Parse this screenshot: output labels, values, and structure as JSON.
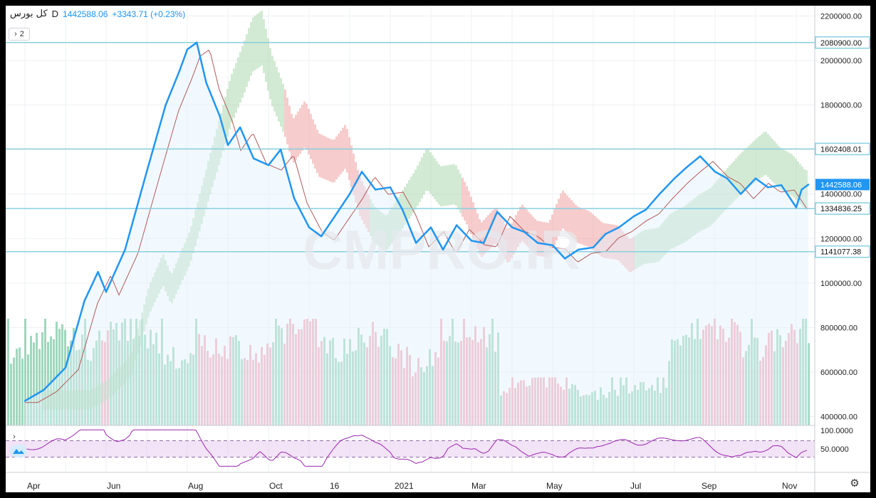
{
  "legend": {
    "symbol": "کل بورس",
    "timeframe": "D",
    "price": "1442588.06",
    "change": "+3343.71 (+0.23%)"
  },
  "ui": {
    "collapse_count": "2",
    "collapse_icon": "chevron-right-icon",
    "settings_icon": "gear-icon"
  },
  "watermark": "CMPRO.IR",
  "colors": {
    "price_line": "#2196f3",
    "hline": "#89cfe0",
    "kijun": "#b05a5a",
    "cloud_bull": "#a5d6a7",
    "cloud_bear": "#ef9a9a",
    "vol_up": "#8fd0b0",
    "vol_down": "#f0a3b0",
    "rsi_line": "#9c27b0",
    "rsi_band": "#ead1f0"
  },
  "chart_data": {
    "type": "line",
    "title": "کل بورس",
    "timeframe": "D",
    "x_tick_labels": [
      "Apr",
      "Jun",
      "Aug",
      "Oct",
      "16",
      "2021",
      "Mar",
      "May",
      "Jul",
      "Sep",
      "Nov"
    ],
    "y_tick_labels": [
      "400000.00",
      "600000.00",
      "800000.00",
      "1000000.00",
      "1200000.00",
      "1400000.00",
      "1600000.00",
      "1800000.00",
      "2000000.00",
      "2200000.00"
    ],
    "ylim": [
      360000,
      2240000
    ],
    "grid": true,
    "price_series": {
      "name": "کل بورس",
      "points": [
        [
          "Apr-01",
          470000
        ],
        [
          "Apr-15",
          520000
        ],
        [
          "May-01",
          620000
        ],
        [
          "May-15",
          920000
        ],
        [
          "May-25",
          1050000
        ],
        [
          "Jun-01",
          960000
        ],
        [
          "Jun-15",
          1150000
        ],
        [
          "Jul-01",
          1500000
        ],
        [
          "Jul-15",
          1800000
        ],
        [
          "Jul-25",
          1950000
        ],
        [
          "Aug-01",
          2050000
        ],
        [
          "Aug-08",
          2080900
        ],
        [
          "Aug-15",
          1900000
        ],
        [
          "Aug-25",
          1750000
        ],
        [
          "Sep-01",
          1620000
        ],
        [
          "Sep-10",
          1700000
        ],
        [
          "Sep-20",
          1560000
        ],
        [
          "Oct-01",
          1530000
        ],
        [
          "Oct-10",
          1600000
        ],
        [
          "Oct-20",
          1380000
        ],
        [
          "Nov-01",
          1250000
        ],
        [
          "Nov-10",
          1210000
        ],
        [
          "Nov-20",
          1300000
        ],
        [
          "Dec-01",
          1400000
        ],
        [
          "Dec-10",
          1500000
        ],
        [
          "Dec-20",
          1420000
        ],
        [
          "Jan-01",
          1430000
        ],
        [
          "Jan-10",
          1330000
        ],
        [
          "Jan-20",
          1180000
        ],
        [
          "Feb-01",
          1250000
        ],
        [
          "Feb-10",
          1150000
        ],
        [
          "Feb-20",
          1260000
        ],
        [
          "Mar-01",
          1190000
        ],
        [
          "Mar-10",
          1180000
        ],
        [
          "Mar-20",
          1320000
        ],
        [
          "Apr-01",
          1250000
        ],
        [
          "Apr-10",
          1230000
        ],
        [
          "Apr-20",
          1180000
        ],
        [
          "May-01",
          1170000
        ],
        [
          "May-10",
          1110000
        ],
        [
          "May-20",
          1150000
        ],
        [
          "Jun-01",
          1160000
        ],
        [
          "Jun-10",
          1220000
        ],
        [
          "Jun-20",
          1250000
        ],
        [
          "Jul-01",
          1300000
        ],
        [
          "Jul-10",
          1330000
        ],
        [
          "Jul-20",
          1400000
        ],
        [
          "Aug-01",
          1470000
        ],
        [
          "Aug-10",
          1520000
        ],
        [
          "Aug-20",
          1570000
        ],
        [
          "Sep-01",
          1500000
        ],
        [
          "Sep-10",
          1470000
        ],
        [
          "Sep-20",
          1400000
        ],
        [
          "Oct-01",
          1470000
        ],
        [
          "Oct-10",
          1430000
        ],
        [
          "Oct-20",
          1440000
        ],
        [
          "Nov-01",
          1340000
        ],
        [
          "Nov-05",
          1420000
        ],
        [
          "Nov-10",
          1442588
        ]
      ]
    },
    "horizontal_lines": [
      {
        "value": 2080900.0,
        "label": "2080900.00"
      },
      {
        "value": 1602408.01,
        "label": "1602408.01"
      },
      {
        "value": 1334836.25,
        "label": "1334836.25"
      },
      {
        "value": 1141077.38,
        "label": "1141077.38"
      }
    ],
    "current_price_label": {
      "value": 1442588.06,
      "label": "1442588.06"
    },
    "rsi": {
      "y_tick_labels": [
        "100.0000",
        "50.0000"
      ],
      "ylim": [
        0,
        100
      ],
      "bands": [
        30,
        70
      ]
    }
  }
}
